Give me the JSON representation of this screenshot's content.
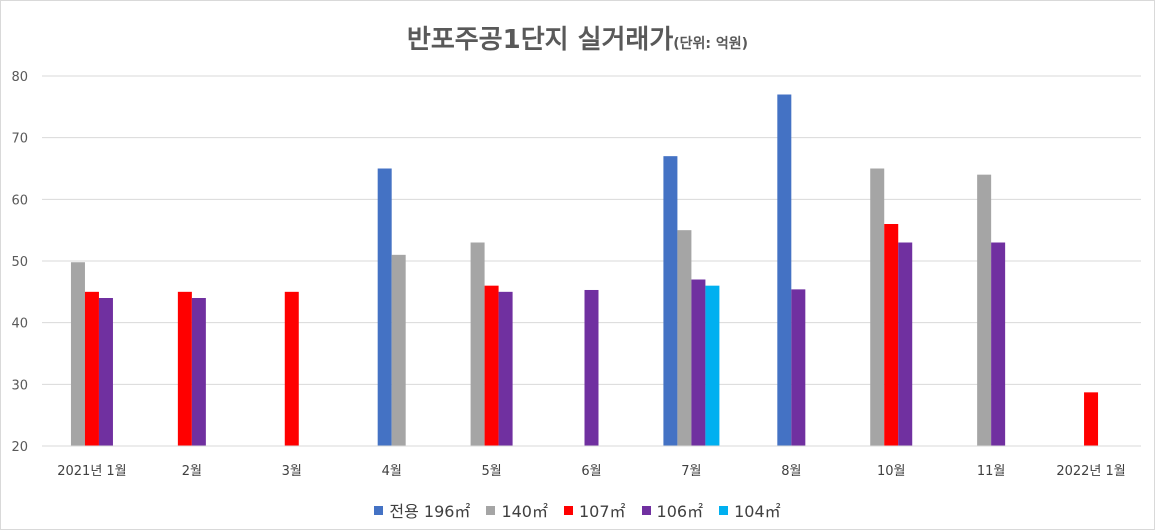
{
  "chart_data": {
    "type": "bar",
    "title": "반포주공1단지 실거래가",
    "title_unit": "(단위: 억원)",
    "xlabel": "",
    "ylabel": "",
    "ylim": [
      20,
      80
    ],
    "yticks": [
      "20",
      "30",
      "40",
      "50",
      "60",
      "70",
      "80"
    ],
    "grid": true,
    "legend_position": "bottom",
    "categories": [
      "2021년 1월",
      "2월",
      "3월",
      "4월",
      "5월",
      "6월",
      "7월",
      "8월",
      "10월",
      "11월",
      "2022년 1월"
    ],
    "series": [
      {
        "name": "전용 196㎡",
        "color": "#4472C4",
        "values": [
          null,
          null,
          null,
          65,
          null,
          null,
          67,
          77,
          null,
          null,
          null
        ]
      },
      {
        "name": "140㎡",
        "color": "#A5A5A5",
        "values": [
          49.8,
          null,
          null,
          51,
          53,
          null,
          55,
          null,
          65,
          64,
          null
        ]
      },
      {
        "name": "107㎡",
        "color": "#FF0000",
        "values": [
          45,
          45,
          45,
          null,
          46,
          null,
          null,
          null,
          56,
          null,
          28.7
        ]
      },
      {
        "name": "106㎡",
        "color": "#7030A0",
        "values": [
          44,
          44,
          null,
          null,
          45,
          45.3,
          47,
          45.4,
          53,
          53,
          null
        ]
      },
      {
        "name": "104㎡",
        "color": "#00B0F0",
        "values": [
          null,
          null,
          null,
          null,
          null,
          null,
          46,
          null,
          null,
          null,
          null
        ]
      }
    ]
  }
}
